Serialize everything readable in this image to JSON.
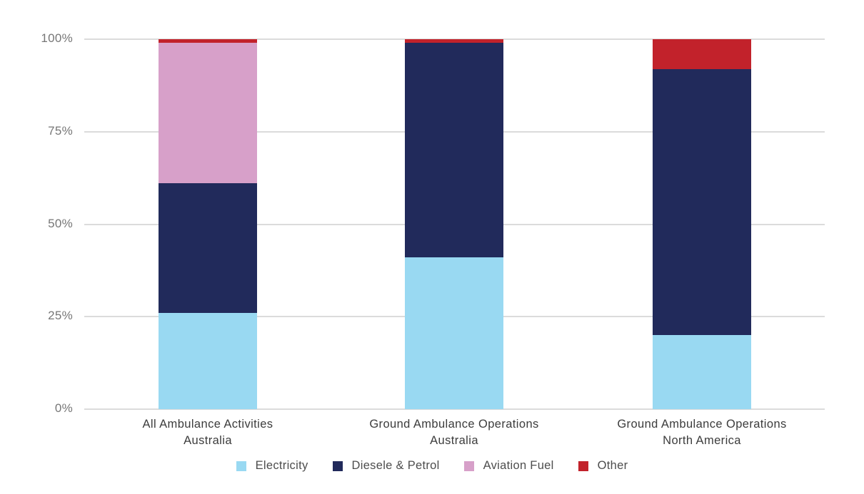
{
  "chart_data": {
    "type": "bar",
    "stacked": true,
    "orientation": "vertical",
    "title": "",
    "xlabel": "",
    "ylabel": "",
    "ylim": [
      0,
      100
    ],
    "y_unit": "%",
    "y_ticks": [
      "0%",
      "25%",
      "50%",
      "75%",
      "100%"
    ],
    "y_tick_values": [
      0,
      25,
      50,
      75,
      100
    ],
    "grid": true,
    "legend_position": "bottom",
    "categories": [
      {
        "line1": "All Ambulance Activities",
        "line2": "Australia"
      },
      {
        "line1": "Ground Ambulance Operations",
        "line2": "Australia"
      },
      {
        "line1": "Ground Ambulance Operations",
        "line2": "North America"
      }
    ],
    "series": [
      {
        "name": "Electricity",
        "color": "#99d9f2",
        "values": [
          26,
          41,
          20
        ]
      },
      {
        "name": "Diesele & Petrol",
        "color": "#212a5b",
        "values": [
          35,
          58,
          72
        ]
      },
      {
        "name": "Aviation Fuel",
        "color": "#d7a0c9",
        "values": [
          38,
          0,
          0
        ]
      },
      {
        "name": "Other",
        "color": "#c2222b",
        "values": [
          1,
          1,
          8
        ]
      }
    ]
  },
  "colors": {
    "background": "#ffffff",
    "gridline": "#dbdbdb",
    "y_tick_text": "#767676",
    "category_text": "#3c3c3c",
    "legend_text": "#4d4d4d"
  }
}
